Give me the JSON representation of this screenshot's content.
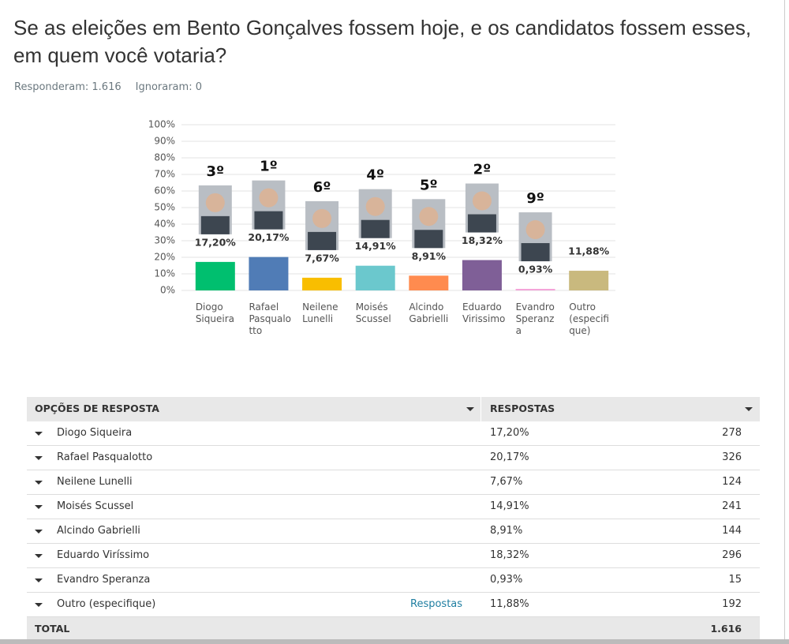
{
  "header": {
    "title": "Se as eleições em Bento Gonçalves fossem hoje, e os candidatos fossem esses, em quem você votaria?",
    "answered": "Responderam: 1.616",
    "skipped": "Ignoraram: 0"
  },
  "chart_data": {
    "type": "bar",
    "categories": [
      "Diogo Siqueira",
      "Rafael Pasqualotto",
      "Neilene Lunelli",
      "Moisés Scussel",
      "Alcindo Gabrielli",
      "Eduardo Virissimo",
      "Evandro Speranza",
      "Outro (especifique)"
    ],
    "values": [
      17.2,
      20.17,
      7.67,
      14.91,
      8.91,
      18.32,
      0.93,
      11.88
    ],
    "value_labels": [
      "17,20%",
      "20,17%",
      "7,67%",
      "14,91%",
      "8,91%",
      "18,32%",
      "0,93%",
      "11,88%"
    ],
    "annotations": [
      "3º",
      "1º",
      "6º",
      "4º",
      "5º",
      "2º",
      "9º",
      null
    ],
    "colors": [
      "#00bf6f",
      "#507cb6",
      "#f9be00",
      "#6bc8cd",
      "#ff8b4f",
      "#7f5f97",
      "#f3a2d9",
      "#c9b97e"
    ],
    "ylim": [
      0,
      100
    ],
    "yticks": [
      {
        "value": 0,
        "label": "0%"
      },
      {
        "value": 10,
        "label": "10%"
      },
      {
        "value": 20,
        "label": "20%"
      },
      {
        "value": 30,
        "label": "30%"
      },
      {
        "value": 40,
        "label": "40%"
      },
      {
        "value": 50,
        "label": "50%"
      },
      {
        "value": 60,
        "label": "60%"
      },
      {
        "value": 70,
        "label": "70%"
      },
      {
        "value": 80,
        "label": "80%"
      },
      {
        "value": 90,
        "label": "90%"
      },
      {
        "value": 100,
        "label": "100%"
      }
    ],
    "grid": true
  },
  "table": {
    "columns": [
      "OPÇÕES DE RESPOSTA",
      "RESPOSTAS"
    ],
    "rows": [
      {
        "option": "Diogo Siqueira",
        "percent": "17,20%",
        "count": "278"
      },
      {
        "option": "Rafael Pasqualotto",
        "percent": "20,17%",
        "count": "326"
      },
      {
        "option": "Neilene Lunelli",
        "percent": "7,67%",
        "count": "124"
      },
      {
        "option": "Moisés Scussel",
        "percent": "14,91%",
        "count": "241"
      },
      {
        "option": "Alcindo Gabrielli",
        "percent": "8,91%",
        "count": "144"
      },
      {
        "option": "Eduardo Viríssimo",
        "percent": "18,32%",
        "count": "296"
      },
      {
        "option": "Evandro Speranza",
        "percent": "0,93%",
        "count": "15"
      },
      {
        "option": "Outro (especifique)",
        "link": "Respostas",
        "percent": "11,88%",
        "count": "192"
      }
    ],
    "total": {
      "label": "TOTAL",
      "count": "1.616"
    }
  }
}
